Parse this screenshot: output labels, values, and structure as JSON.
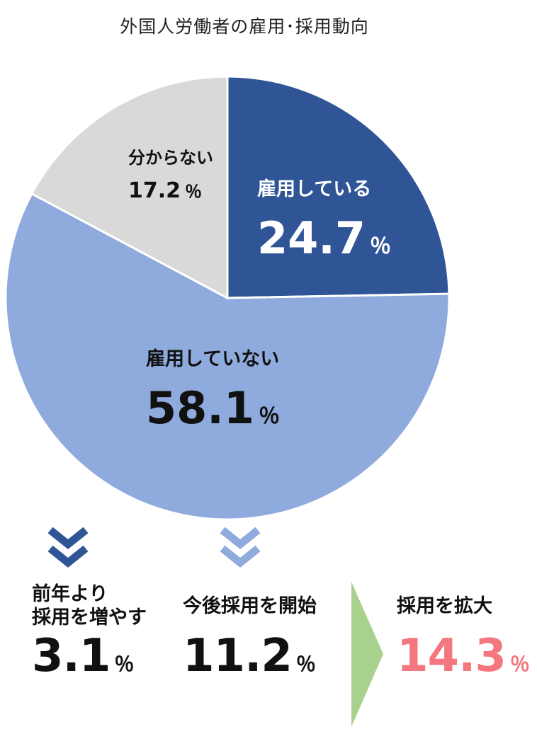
{
  "title": "外国人労働者の雇用･採用動向",
  "colors": {
    "employing": "#2f5597",
    "not_employing": "#8faadc",
    "unknown": "#d9d9d9",
    "arrow_green": "#a9d18e",
    "highlight": "#f4777f",
    "chevron_dark": "#2f5597",
    "chevron_light": "#8faadc"
  },
  "chart_data": {
    "type": "pie",
    "title": "外国人労働者の雇用･採用動向",
    "slices": [
      {
        "label": "雇用している",
        "value": 24.7,
        "value_text": "24.7",
        "color": "#2f5597"
      },
      {
        "label": "雇用していない",
        "value": 58.1,
        "value_text": "58.1",
        "color": "#8faadc"
      },
      {
        "label": "分からない",
        "value": 17.2,
        "value_text": "17.2",
        "color": "#d9d9d9"
      }
    ],
    "unit": "％"
  },
  "breakdown": {
    "increase": {
      "label_line1": "前年より",
      "label_line2": "採用を増やす",
      "value": "3.1",
      "unit": "％"
    },
    "start": {
      "label": "今後採用を開始",
      "value": "11.2",
      "unit": "％"
    },
    "expand": {
      "label": "採用を拡大",
      "value": "14.3",
      "unit": "％"
    }
  },
  "icons": {
    "chevrons": "double-chevron-down-icon",
    "arrow": "arrow-right-icon"
  }
}
